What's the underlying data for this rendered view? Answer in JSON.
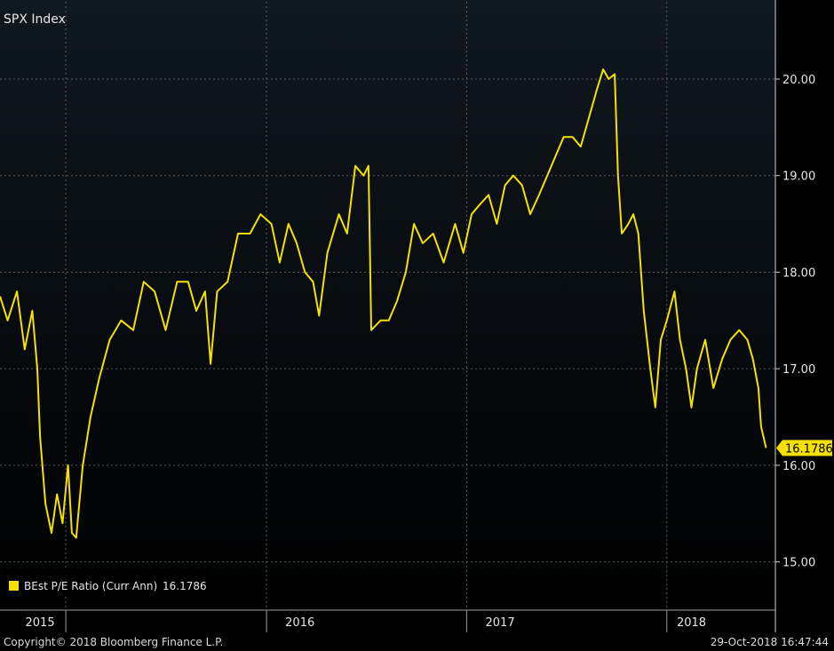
{
  "chart_data": {
    "type": "line",
    "title": "SPX Index",
    "xlim": [
      "2015-01-01",
      "2018-11-15"
    ],
    "ylim": [
      14.5,
      20.8
    ],
    "y_ticks": [
      "15.00",
      "16.00",
      "17.00",
      "18.00",
      "19.00",
      "20.00"
    ],
    "x_tick_labels": [
      {
        "label": "2015",
        "date": "2015-03-15"
      },
      {
        "label": "2016",
        "date": "2016-07-01"
      },
      {
        "label": "2017",
        "date": "2017-07-01"
      },
      {
        "label": "2018",
        "date": "2018-06-15"
      }
    ],
    "x_separators": [
      "2015-05-01",
      "2016-05-01",
      "2017-05-01",
      "2018-05-01"
    ],
    "grid": true,
    "legend_position": "bottom-left",
    "series": [
      {
        "name": "BEst P/E Ratio (Curr Ann)",
        "last_value_label": "16.1786",
        "color": "#f5e100",
        "points": [
          [
            "2015-01-01",
            17.75
          ],
          [
            "2015-01-15",
            17.5
          ],
          [
            "2015-02-01",
            17.8
          ],
          [
            "2015-02-15",
            17.2
          ],
          [
            "2015-03-01",
            17.6
          ],
          [
            "2015-03-10",
            17.0
          ],
          [
            "2015-03-15",
            16.3
          ],
          [
            "2015-03-25",
            15.6
          ],
          [
            "2015-04-05",
            15.3
          ],
          [
            "2015-04-15",
            15.7
          ],
          [
            "2015-04-25",
            15.4
          ],
          [
            "2015-05-05",
            16.0
          ],
          [
            "2015-05-12",
            15.3
          ],
          [
            "2015-05-20",
            15.25
          ],
          [
            "2015-06-01",
            16.0
          ],
          [
            "2015-06-15",
            16.5
          ],
          [
            "2015-07-01",
            16.9
          ],
          [
            "2015-07-20",
            17.3
          ],
          [
            "2015-08-10",
            17.5
          ],
          [
            "2015-09-01",
            17.4
          ],
          [
            "2015-09-20",
            17.9
          ],
          [
            "2015-10-10",
            17.8
          ],
          [
            "2015-10-30",
            17.4
          ],
          [
            "2015-11-20",
            17.9
          ],
          [
            "2015-12-10",
            17.9
          ],
          [
            "2015-12-25",
            17.6
          ],
          [
            "2016-01-10",
            17.8
          ],
          [
            "2016-01-20",
            17.05
          ],
          [
            "2016-02-01",
            17.8
          ],
          [
            "2016-02-20",
            17.9
          ],
          [
            "2016-03-10",
            18.4
          ],
          [
            "2016-04-01",
            18.4
          ],
          [
            "2016-04-20",
            18.6
          ],
          [
            "2016-05-10",
            18.5
          ],
          [
            "2016-05-25",
            18.1
          ],
          [
            "2016-06-10",
            18.5
          ],
          [
            "2016-06-25",
            18.3
          ],
          [
            "2016-07-10",
            18.0
          ],
          [
            "2016-07-25",
            17.9
          ],
          [
            "2016-08-05",
            17.55
          ],
          [
            "2016-08-20",
            18.2
          ],
          [
            "2016-09-10",
            18.6
          ],
          [
            "2016-09-25",
            18.4
          ],
          [
            "2016-10-10",
            19.1
          ],
          [
            "2016-10-25",
            19.0
          ],
          [
            "2016-11-03",
            19.1
          ],
          [
            "2016-11-08",
            17.4
          ],
          [
            "2016-11-25",
            17.5
          ],
          [
            "2016-12-10",
            17.5
          ],
          [
            "2016-12-25",
            17.7
          ],
          [
            "2017-01-10",
            18.0
          ],
          [
            "2017-01-25",
            18.5
          ],
          [
            "2017-02-10",
            18.3
          ],
          [
            "2017-03-01",
            18.4
          ],
          [
            "2017-03-20",
            18.1
          ],
          [
            "2017-04-10",
            18.5
          ],
          [
            "2017-04-25",
            18.2
          ],
          [
            "2017-05-10",
            18.6
          ],
          [
            "2017-05-25",
            18.7
          ],
          [
            "2017-06-10",
            18.8
          ],
          [
            "2017-06-25",
            18.5
          ],
          [
            "2017-07-10",
            18.9
          ],
          [
            "2017-07-25",
            19.0
          ],
          [
            "2017-08-10",
            18.9
          ],
          [
            "2017-08-25",
            18.6
          ],
          [
            "2017-09-10",
            18.8
          ],
          [
            "2017-09-25",
            19.0
          ],
          [
            "2017-10-10",
            19.2
          ],
          [
            "2017-10-25",
            19.4
          ],
          [
            "2017-11-10",
            19.4
          ],
          [
            "2017-11-25",
            19.3
          ],
          [
            "2017-12-10",
            19.6
          ],
          [
            "2017-12-25",
            19.9
          ],
          [
            "2018-01-05",
            20.1
          ],
          [
            "2018-01-15",
            20.0
          ],
          [
            "2018-01-26",
            20.05
          ],
          [
            "2018-02-01",
            19.0
          ],
          [
            "2018-02-08",
            18.4
          ],
          [
            "2018-02-20",
            18.5
          ],
          [
            "2018-03-01",
            18.6
          ],
          [
            "2018-03-10",
            18.4
          ],
          [
            "2018-03-20",
            17.6
          ],
          [
            "2018-04-01",
            17.0
          ],
          [
            "2018-04-10",
            16.6
          ],
          [
            "2018-04-20",
            17.3
          ],
          [
            "2018-05-01",
            17.5
          ],
          [
            "2018-05-15",
            17.8
          ],
          [
            "2018-05-25",
            17.3
          ],
          [
            "2018-06-05",
            17.0
          ],
          [
            "2018-06-15",
            16.6
          ],
          [
            "2018-06-25",
            17.0
          ],
          [
            "2018-07-10",
            17.3
          ],
          [
            "2018-07-25",
            16.8
          ],
          [
            "2018-08-10",
            17.1
          ],
          [
            "2018-08-25",
            17.3
          ],
          [
            "2018-09-10",
            17.4
          ],
          [
            "2018-09-25",
            17.3
          ],
          [
            "2018-10-05",
            17.1
          ],
          [
            "2018-10-15",
            16.8
          ],
          [
            "2018-10-20",
            16.4
          ],
          [
            "2018-10-29",
            16.18
          ]
        ]
      }
    ]
  },
  "footer": {
    "copyright": "Copyright© 2018 Bloomberg Finance L.P.",
    "timestamp": "29-Oct-2018 16:47:44"
  },
  "colors": {
    "background_top": "#101820",
    "background_bottom": "#000000",
    "line": "#f5e100",
    "grid": "#5a5a5a",
    "text": "#e6e6e6"
  }
}
